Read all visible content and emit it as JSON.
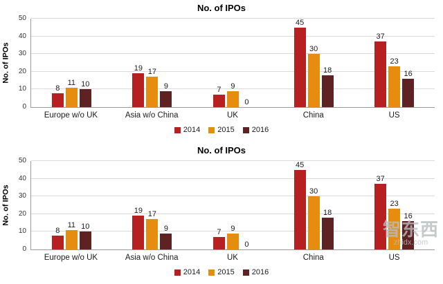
{
  "watermark": {
    "line1": "智东西",
    "line2": "zhidx.com"
  },
  "chart_data": [
    {
      "type": "bar",
      "title": "No. of IPOs",
      "ylabel": "No. of IPOs",
      "xlabel": "",
      "ylim": [
        0,
        50
      ],
      "yticks": [
        0,
        10,
        20,
        30,
        40,
        50
      ],
      "grid": true,
      "legend_position": "bottom",
      "categories": [
        "Europe w/o UK",
        "Asia w/o China",
        "UK",
        "China",
        "US"
      ],
      "series": [
        {
          "name": "2014",
          "color": "#b62021",
          "values": [
            8,
            19,
            7,
            45,
            37
          ]
        },
        {
          "name": "2015",
          "color": "#e68c0e",
          "values": [
            11,
            17,
            9,
            30,
            23
          ]
        },
        {
          "name": "2016",
          "color": "#5e2223",
          "values": [
            10,
            9,
            0,
            18,
            16
          ]
        }
      ]
    },
    {
      "type": "bar",
      "title": "No. of IPOs",
      "ylabel": "No. of IPOs",
      "xlabel": "",
      "ylim": [
        0,
        50
      ],
      "yticks": [
        0,
        10,
        20,
        30,
        40,
        50
      ],
      "grid": true,
      "legend_position": "bottom",
      "categories": [
        "Europe w/o UK",
        "Asia w/o China",
        "UK",
        "China",
        "US"
      ],
      "series": [
        {
          "name": "2014",
          "color": "#b62021",
          "values": [
            8,
            19,
            7,
            45,
            37
          ]
        },
        {
          "name": "2015",
          "color": "#e68c0e",
          "values": [
            11,
            17,
            9,
            30,
            23
          ]
        },
        {
          "name": "2016",
          "color": "#5e2223",
          "values": [
            10,
            9,
            0,
            18,
            16
          ]
        }
      ]
    }
  ]
}
